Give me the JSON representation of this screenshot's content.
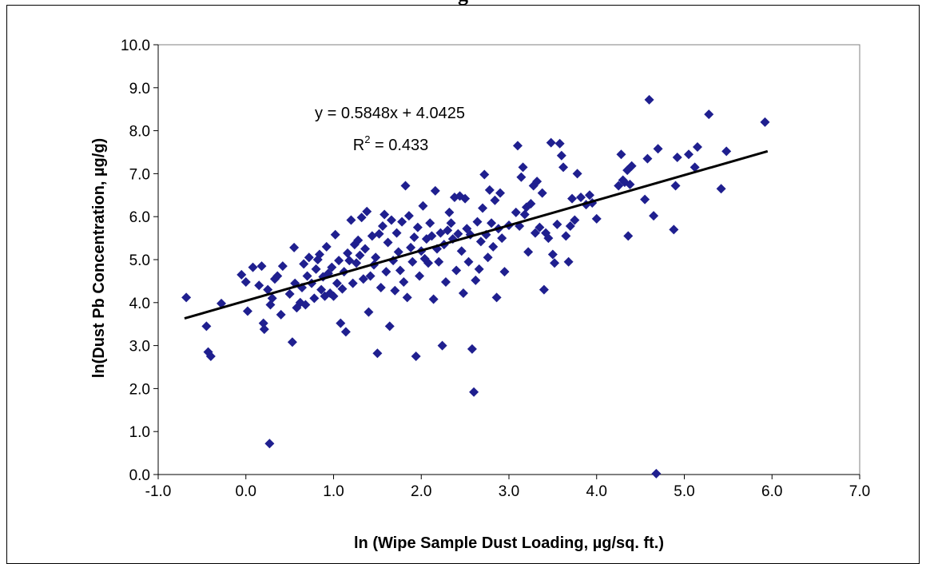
{
  "chart_data": {
    "type": "scatter",
    "title": "",
    "top_title_fragment": "g",
    "xlabel": "ln (Wipe Sample Dust Loading, µg/sq. ft.)",
    "ylabel": "ln(Dust Pb Concentration, µg/g)",
    "xlim": [
      -1.0,
      7.0
    ],
    "ylim": [
      0.0,
      10.0
    ],
    "x_ticks": [
      "-1.0",
      "0.0",
      "1.0",
      "2.0",
      "3.0",
      "4.0",
      "5.0",
      "6.0",
      "7.0"
    ],
    "y_ticks": [
      "0.0",
      "1.0",
      "2.0",
      "3.0",
      "4.0",
      "5.0",
      "6.0",
      "7.0",
      "8.0",
      "9.0",
      "10.0"
    ],
    "grid": false,
    "marker_color": "#1F1F8F",
    "trendline": {
      "slope": 0.5848,
      "intercept": 4.0425,
      "x_range": [
        -0.7,
        5.95
      ],
      "equation_text": "y = 0.5848x + 4.0425",
      "r2_prefix": "R",
      "r2_exp": "2",
      "r2_suffix": " = 0.433"
    },
    "series": [
      {
        "points": [
          [
            -0.68,
            4.12
          ],
          [
            -0.45,
            3.45
          ],
          [
            -0.43,
            2.85
          ],
          [
            -0.4,
            2.75
          ],
          [
            -0.28,
            3.98
          ],
          [
            -0.05,
            4.65
          ],
          [
            0.0,
            4.48
          ],
          [
            0.02,
            3.8
          ],
          [
            0.08,
            4.82
          ],
          [
            0.15,
            4.4
          ],
          [
            0.18,
            4.85
          ],
          [
            0.2,
            3.52
          ],
          [
            0.21,
            3.38
          ],
          [
            0.25,
            4.3
          ],
          [
            0.27,
            0.72
          ],
          [
            0.28,
            3.95
          ],
          [
            0.3,
            4.1
          ],
          [
            0.33,
            4.55
          ],
          [
            0.36,
            4.62
          ],
          [
            0.4,
            3.72
          ],
          [
            0.42,
            4.85
          ],
          [
            0.5,
            4.2
          ],
          [
            0.53,
            3.08
          ],
          [
            0.55,
            5.28
          ],
          [
            0.56,
            4.45
          ],
          [
            0.58,
            3.88
          ],
          [
            0.62,
            4.0
          ],
          [
            0.64,
            4.35
          ],
          [
            0.66,
            4.9
          ],
          [
            0.68,
            3.95
          ],
          [
            0.7,
            4.62
          ],
          [
            0.72,
            5.05
          ],
          [
            0.75,
            4.45
          ],
          [
            0.78,
            4.1
          ],
          [
            0.8,
            4.78
          ],
          [
            0.82,
            5.0
          ],
          [
            0.84,
            5.12
          ],
          [
            0.86,
            4.3
          ],
          [
            0.88,
            4.6
          ],
          [
            0.9,
            4.15
          ],
          [
            0.92,
            5.3
          ],
          [
            0.94,
            4.68
          ],
          [
            0.96,
            4.22
          ],
          [
            0.98,
            4.82
          ],
          [
            1.0,
            4.15
          ],
          [
            1.02,
            5.58
          ],
          [
            1.04,
            4.45
          ],
          [
            1.06,
            4.98
          ],
          [
            1.08,
            3.52
          ],
          [
            1.1,
            4.32
          ],
          [
            1.12,
            4.72
          ],
          [
            1.14,
            3.32
          ],
          [
            1.16,
            5.15
          ],
          [
            1.18,
            4.98
          ],
          [
            1.2,
            5.92
          ],
          [
            1.22,
            4.45
          ],
          [
            1.24,
            5.35
          ],
          [
            1.26,
            4.92
          ],
          [
            1.28,
            5.45
          ],
          [
            1.3,
            5.1
          ],
          [
            1.32,
            5.98
          ],
          [
            1.34,
            4.55
          ],
          [
            1.36,
            5.25
          ],
          [
            1.38,
            6.12
          ],
          [
            1.4,
            3.78
          ],
          [
            1.42,
            4.62
          ],
          [
            1.44,
            5.55
          ],
          [
            1.46,
            4.88
          ],
          [
            1.48,
            5.05
          ],
          [
            1.5,
            2.82
          ],
          [
            1.52,
            5.6
          ],
          [
            1.54,
            4.35
          ],
          [
            1.56,
            5.78
          ],
          [
            1.58,
            6.05
          ],
          [
            1.6,
            4.72
          ],
          [
            1.62,
            5.4
          ],
          [
            1.64,
            3.45
          ],
          [
            1.66,
            5.92
          ],
          [
            1.68,
            4.98
          ],
          [
            1.7,
            4.28
          ],
          [
            1.72,
            5.62
          ],
          [
            1.74,
            5.18
          ],
          [
            1.76,
            4.75
          ],
          [
            1.78,
            5.88
          ],
          [
            1.8,
            4.48
          ],
          [
            1.82,
            6.72
          ],
          [
            1.84,
            4.12
          ],
          [
            1.86,
            6.02
          ],
          [
            1.88,
            5.28
          ],
          [
            1.9,
            4.95
          ],
          [
            1.92,
            5.52
          ],
          [
            1.94,
            2.75
          ],
          [
            1.96,
            5.75
          ],
          [
            1.98,
            4.62
          ],
          [
            2.0,
            5.2
          ],
          [
            2.02,
            6.25
          ],
          [
            2.04,
            5.02
          ],
          [
            2.06,
            5.48
          ],
          [
            2.08,
            4.92
          ],
          [
            2.1,
            5.85
          ],
          [
            2.12,
            5.55
          ],
          [
            2.14,
            4.08
          ],
          [
            2.16,
            6.6
          ],
          [
            2.18,
            5.25
          ],
          [
            2.2,
            4.95
          ],
          [
            2.22,
            5.62
          ],
          [
            2.24,
            3.0
          ],
          [
            2.26,
            5.35
          ],
          [
            2.28,
            4.48
          ],
          [
            2.3,
            5.68
          ],
          [
            2.32,
            6.1
          ],
          [
            2.34,
            5.85
          ],
          [
            2.36,
            5.48
          ],
          [
            2.38,
            6.45
          ],
          [
            2.4,
            4.75
          ],
          [
            2.42,
            5.6
          ],
          [
            2.44,
            6.48
          ],
          [
            2.46,
            5.2
          ],
          [
            2.48,
            4.22
          ],
          [
            2.5,
            6.42
          ],
          [
            2.52,
            5.72
          ],
          [
            2.54,
            4.95
          ],
          [
            2.56,
            5.58
          ],
          [
            2.58,
            2.92
          ],
          [
            2.6,
            1.92
          ],
          [
            2.62,
            4.52
          ],
          [
            2.64,
            5.88
          ],
          [
            2.66,
            4.78
          ],
          [
            2.68,
            5.42
          ],
          [
            2.7,
            6.2
          ],
          [
            2.72,
            6.98
          ],
          [
            2.74,
            5.58
          ],
          [
            2.76,
            5.05
          ],
          [
            2.78,
            6.62
          ],
          [
            2.8,
            5.85
          ],
          [
            2.82,
            5.3
          ],
          [
            2.84,
            6.38
          ],
          [
            2.86,
            4.12
          ],
          [
            2.88,
            5.72
          ],
          [
            2.9,
            6.55
          ],
          [
            2.92,
            5.5
          ],
          [
            2.95,
            4.72
          ],
          [
            3.0,
            5.8
          ],
          [
            3.08,
            6.1
          ],
          [
            3.1,
            7.65
          ],
          [
            3.12,
            5.78
          ],
          [
            3.14,
            6.92
          ],
          [
            3.16,
            7.15
          ],
          [
            3.18,
            6.05
          ],
          [
            3.2,
            6.22
          ],
          [
            3.22,
            5.18
          ],
          [
            3.25,
            6.3
          ],
          [
            3.28,
            6.72
          ],
          [
            3.3,
            5.62
          ],
          [
            3.32,
            6.82
          ],
          [
            3.35,
            5.75
          ],
          [
            3.38,
            6.55
          ],
          [
            3.4,
            4.3
          ],
          [
            3.42,
            5.62
          ],
          [
            3.45,
            5.5
          ],
          [
            3.48,
            7.72
          ],
          [
            3.5,
            5.12
          ],
          [
            3.52,
            4.92
          ],
          [
            3.55,
            5.82
          ],
          [
            3.58,
            7.7
          ],
          [
            3.6,
            7.42
          ],
          [
            3.62,
            7.15
          ],
          [
            3.65,
            5.55
          ],
          [
            3.68,
            4.95
          ],
          [
            3.7,
            5.78
          ],
          [
            3.72,
            6.42
          ],
          [
            3.75,
            5.92
          ],
          [
            3.78,
            7.0
          ],
          [
            3.82,
            6.45
          ],
          [
            3.88,
            6.28
          ],
          [
            3.92,
            6.5
          ],
          [
            3.95,
            6.32
          ],
          [
            4.0,
            5.95
          ],
          [
            4.25,
            6.72
          ],
          [
            4.28,
            7.45
          ],
          [
            4.3,
            6.85
          ],
          [
            4.32,
            6.8
          ],
          [
            4.35,
            7.08
          ],
          [
            4.36,
            5.55
          ],
          [
            4.38,
            6.75
          ],
          [
            4.4,
            7.18
          ],
          [
            4.55,
            6.4
          ],
          [
            4.58,
            7.35
          ],
          [
            4.6,
            8.72
          ],
          [
            4.65,
            6.02
          ],
          [
            4.68,
            0.02
          ],
          [
            4.7,
            7.58
          ],
          [
            4.88,
            5.7
          ],
          [
            4.9,
            6.72
          ],
          [
            4.92,
            7.38
          ],
          [
            5.05,
            7.45
          ],
          [
            5.12,
            7.15
          ],
          [
            5.15,
            7.62
          ],
          [
            5.28,
            8.38
          ],
          [
            5.42,
            6.65
          ],
          [
            5.48,
            7.52
          ],
          [
            5.92,
            8.2
          ]
        ]
      }
    ]
  }
}
